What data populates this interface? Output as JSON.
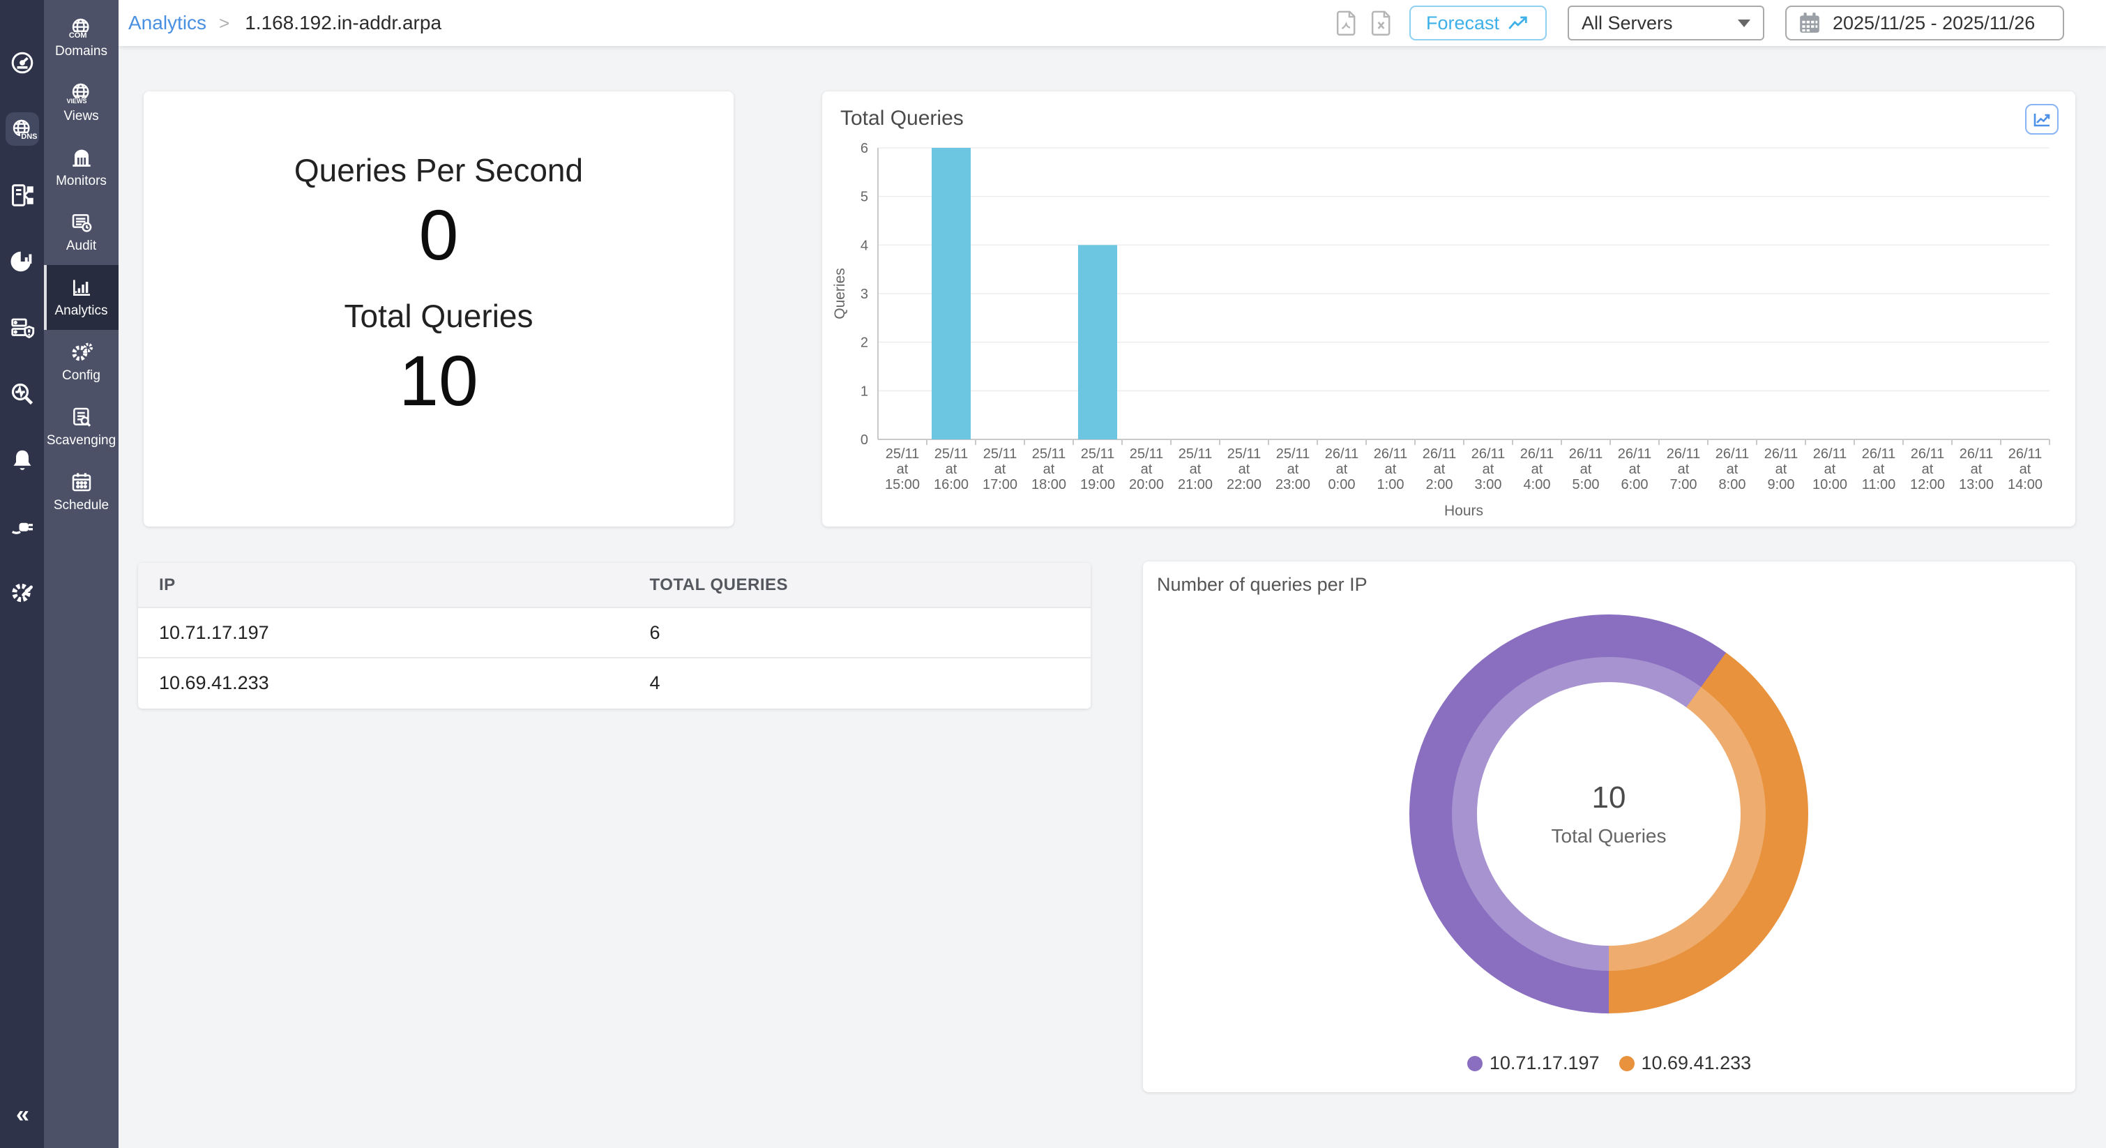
{
  "sidebar": {
    "collapse": "«",
    "rail_dns_tag": "DNS",
    "rail_icons": [
      "gauge-icon",
      "globe-dns-icon",
      "zone-file-icon",
      "pie-stats-icon",
      "server-alert-icon",
      "search-pulse-icon",
      "bell-icon",
      "plug-icon",
      "gear-wrench-icon"
    ],
    "menu": [
      {
        "label": "Domains",
        "tag": "COM"
      },
      {
        "label": "Views",
        "tag": "VIEWS"
      },
      {
        "label": "Monitors"
      },
      {
        "label": "Audit"
      },
      {
        "label": "Analytics"
      },
      {
        "label": "Config"
      },
      {
        "label": "Scavenging"
      },
      {
        "label": "Schedule"
      }
    ]
  },
  "topbar": {
    "breadcrumb_section": "Analytics",
    "breadcrumb_separator": ">",
    "zone": "1.168.192.in-addr.arpa",
    "forecast_label": "Forecast",
    "server_filter": "All Servers",
    "date_range": "2025/11/25 - 2025/11/26"
  },
  "cards": {
    "qps": {
      "title": "Queries Per Second",
      "value": "0",
      "total_title": "Total Queries",
      "total_value": "10"
    },
    "ip_table": {
      "columns": [
        "IP",
        "TOTAL QUERIES"
      ],
      "rows": [
        {
          "ip": "10.71.17.197",
          "total": "6"
        },
        {
          "ip": "10.69.41.233",
          "total": "4"
        }
      ]
    }
  },
  "chart_data": [
    {
      "type": "bar",
      "title": "Total Queries",
      "xlabel": "Hours",
      "ylabel": "Queries",
      "ylim": [
        0,
        6
      ],
      "grid": true,
      "color": "#6cc6e2",
      "categories": [
        "25/11 at 15:00",
        "25/11 at 16:00",
        "25/11 at 17:00",
        "25/11 at 18:00",
        "25/11 at 19:00",
        "25/11 at 20:00",
        "25/11 at 21:00",
        "25/11 at 22:00",
        "25/11 at 23:00",
        "26/11 at 0:00",
        "26/11 at 1:00",
        "26/11 at 2:00",
        "26/11 at 3:00",
        "26/11 at 4:00",
        "26/11 at 5:00",
        "26/11 at 6:00",
        "26/11 at 7:00",
        "26/11 at 8:00",
        "26/11 at 9:00",
        "26/11 at 10:00",
        "26/11 at 11:00",
        "26/11 at 12:00",
        "26/11 at 13:00",
        "26/11 at 14:00"
      ],
      "values": [
        0,
        6,
        0,
        0,
        4,
        0,
        0,
        0,
        0,
        0,
        0,
        0,
        0,
        0,
        0,
        0,
        0,
        0,
        0,
        0,
        0,
        0,
        0,
        0
      ]
    },
    {
      "type": "pie",
      "style": "donut",
      "title": "Number of queries per IP",
      "labels": [
        "10.71.17.197",
        "10.69.41.233"
      ],
      "values": [
        6,
        4
      ],
      "colors": [
        "#8a6fc1",
        "#e8923e"
      ],
      "center_value": "10",
      "center_label": "Total Queries",
      "legend_position": "bottom",
      "start_angle_deg_from_top": 180,
      "direction": "clockwise"
    }
  ]
}
